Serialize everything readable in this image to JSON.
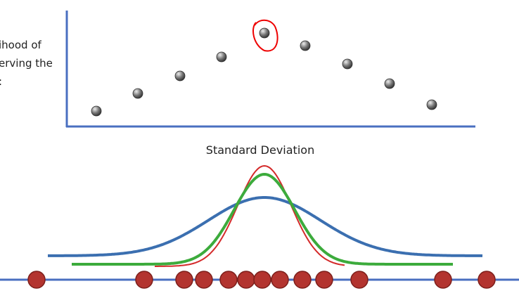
{
  "side_label": {
    "lines": [
      "ihood of",
      "erving the",
      ":"
    ]
  },
  "caption": "Standard Deviation"
}
